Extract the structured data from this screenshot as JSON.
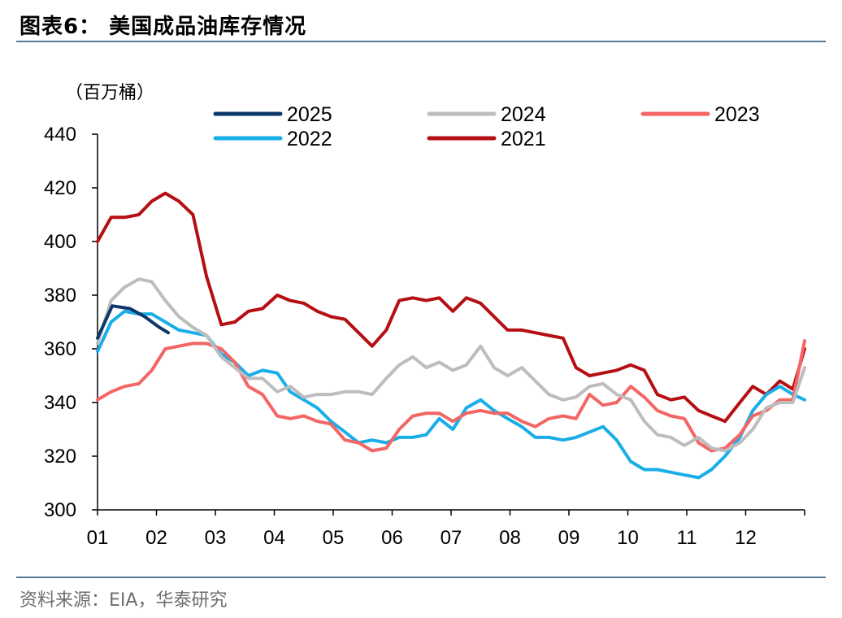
{
  "header": {
    "title": "图表6：  美国成品油库存情况"
  },
  "footer": {
    "source": "资料来源：EIA，华泰研究"
  },
  "chart_data": {
    "type": "line",
    "unit_label": "（百万桶）",
    "ylim": [
      300,
      440
    ],
    "yticks": [
      "300",
      "320",
      "340",
      "360",
      "380",
      "400",
      "420",
      "440"
    ],
    "xlim": [
      1,
      13
    ],
    "xticks": [
      "01",
      "02",
      "03",
      "04",
      "05",
      "06",
      "07",
      "08",
      "09",
      "10",
      "11",
      "12"
    ],
    "legend_position": "top",
    "series": [
      {
        "name": "2025",
        "color": "#0d3768",
        "x": [
          1.0,
          1.25,
          1.55,
          1.8,
          2.05,
          2.2
        ],
        "values": [
          364,
          376,
          375,
          372,
          368,
          366
        ]
      },
      {
        "name": "2024",
        "color": "#bdbdbd",
        "x": [
          1.0,
          1.23,
          1.46,
          1.7,
          1.92,
          2.15,
          2.38,
          2.62,
          2.85,
          3.1,
          3.33,
          3.56,
          3.8,
          4.05,
          4.27,
          4.5,
          4.73,
          4.96,
          5.2,
          5.43,
          5.66,
          5.9,
          6.12,
          6.35,
          6.58,
          6.8,
          7.03,
          7.26,
          7.5,
          7.73,
          7.96,
          8.2,
          8.43,
          8.66,
          8.9,
          9.12,
          9.35,
          9.58,
          9.81,
          10.05,
          10.28,
          10.5,
          10.73,
          10.96,
          11.2,
          11.42,
          11.65,
          11.9,
          12.12,
          12.35,
          12.58,
          12.8,
          13.0
        ],
        "values": [
          362,
          378,
          383,
          386,
          385,
          378,
          372,
          368,
          365,
          357,
          353,
          349,
          349,
          344,
          346,
          342,
          343,
          343,
          344,
          344,
          343,
          349,
          354,
          357,
          353,
          355,
          352,
          354,
          361,
          353,
          350,
          353,
          348,
          343,
          341,
          342,
          346,
          347,
          343,
          341,
          333,
          328,
          327,
          324,
          327,
          323,
          322,
          325,
          330,
          338,
          340,
          340,
          353
        ]
      },
      {
        "name": "2023",
        "color": "#f46565",
        "x": [
          1.0,
          1.23,
          1.46,
          1.7,
          1.92,
          2.15,
          2.38,
          2.62,
          2.85,
          3.1,
          3.33,
          3.56,
          3.8,
          4.05,
          4.27,
          4.5,
          4.73,
          4.96,
          5.2,
          5.43,
          5.66,
          5.9,
          6.12,
          6.35,
          6.58,
          6.8,
          7.03,
          7.26,
          7.5,
          7.73,
          7.96,
          8.2,
          8.43,
          8.66,
          8.9,
          9.12,
          9.35,
          9.58,
          9.81,
          10.05,
          10.28,
          10.5,
          10.73,
          10.96,
          11.2,
          11.42,
          11.65,
          11.9,
          12.12,
          12.35,
          12.58,
          12.8,
          13.0
        ],
        "values": [
          341,
          344,
          346,
          347,
          352,
          360,
          361,
          362,
          362,
          360,
          355,
          346,
          343,
          335,
          334,
          335,
          333,
          332,
          326,
          325,
          322,
          323,
          330,
          335,
          336,
          336,
          333,
          336,
          337,
          336,
          336,
          333,
          331,
          334,
          335,
          334,
          343,
          339,
          340,
          346,
          342,
          337,
          335,
          334,
          325,
          322,
          323,
          328,
          335,
          337,
          341,
          341,
          363
        ]
      },
      {
        "name": "2022",
        "color": "#1aaee8",
        "x": [
          1.0,
          1.23,
          1.46,
          1.7,
          1.92,
          2.15,
          2.38,
          2.62,
          2.85,
          3.1,
          3.33,
          3.56,
          3.8,
          4.05,
          4.27,
          4.5,
          4.73,
          4.96,
          5.2,
          5.43,
          5.66,
          5.9,
          6.12,
          6.35,
          6.58,
          6.8,
          7.03,
          7.26,
          7.5,
          7.73,
          7.96,
          8.2,
          8.43,
          8.66,
          8.9,
          9.12,
          9.35,
          9.58,
          9.81,
          10.05,
          10.28,
          10.5,
          10.73,
          10.96,
          11.2,
          11.42,
          11.65,
          11.9,
          12.12,
          12.35,
          12.58,
          12.8,
          13.0
        ],
        "values": [
          359,
          370,
          374,
          373,
          373,
          370,
          367,
          366,
          365,
          358,
          355,
          350,
          352,
          351,
          344,
          341,
          338,
          333,
          329,
          325,
          326,
          325,
          327,
          327,
          328,
          334,
          330,
          338,
          341,
          337,
          334,
          331,
          327,
          327,
          326,
          327,
          329,
          331,
          326,
          318,
          315,
          315,
          314,
          313,
          312,
          315,
          320,
          327,
          337,
          343,
          346,
          343,
          341
        ]
      },
      {
        "name": "2021",
        "color": "#b50f14",
        "x": [
          1.0,
          1.23,
          1.46,
          1.7,
          1.92,
          2.15,
          2.38,
          2.62,
          2.85,
          3.1,
          3.33,
          3.56,
          3.8,
          4.05,
          4.27,
          4.5,
          4.73,
          4.96,
          5.2,
          5.43,
          5.66,
          5.9,
          6.12,
          6.35,
          6.58,
          6.8,
          7.03,
          7.26,
          7.5,
          7.73,
          7.96,
          8.2,
          8.43,
          8.66,
          8.9,
          9.12,
          9.35,
          9.58,
          9.81,
          10.05,
          10.28,
          10.5,
          10.73,
          10.96,
          11.2,
          11.42,
          11.65,
          11.9,
          12.12,
          12.35,
          12.58,
          12.8,
          13.0
        ],
        "values": [
          400,
          409,
          409,
          410,
          415,
          418,
          415,
          410,
          387,
          369,
          370,
          374,
          375,
          380,
          378,
          377,
          374,
          372,
          371,
          366,
          361,
          367,
          378,
          379,
          378,
          379,
          374,
          379,
          377,
          372,
          367,
          367,
          366,
          365,
          364,
          353,
          350,
          351,
          352,
          354,
          352,
          343,
          341,
          342,
          337,
          335,
          333,
          340,
          346,
          343,
          348,
          345,
          360
        ]
      }
    ]
  }
}
